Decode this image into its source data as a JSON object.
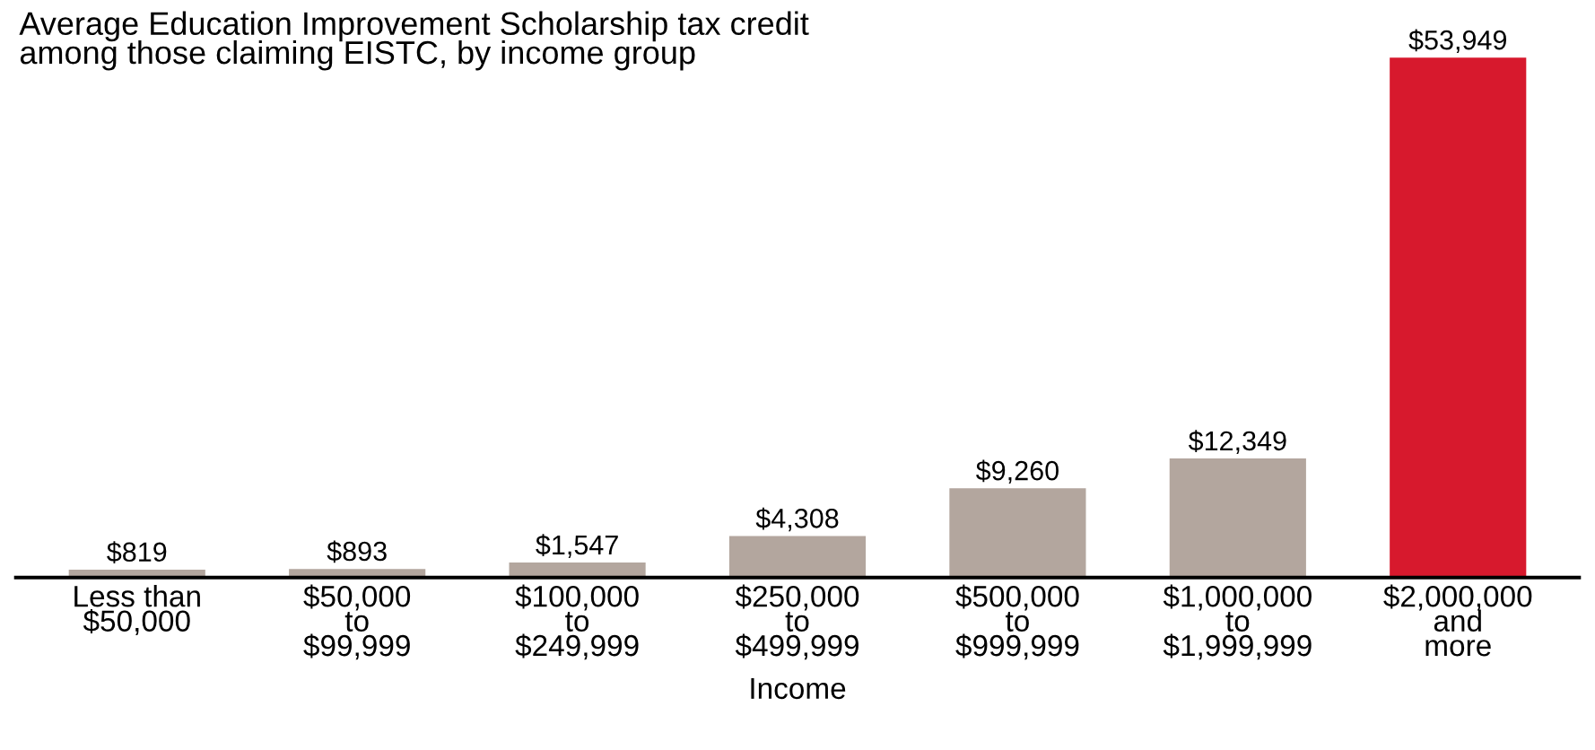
{
  "chart_data": {
    "type": "bar",
    "title": "Average Education Improvement Scholarship tax credit\namong those claiming EISTC, by income group",
    "xlabel": "Income",
    "categories": [
      "Less than\n$50,000",
      "$50,000\nto\n$99,999",
      "$100,000\nto\n$249,999",
      "$250,000\nto\n$499,999",
      "$500,000\nto\n$999,999",
      "$1,000,000\nto\n$1,999,999",
      "$2,000,000\nand\nmore"
    ],
    "values": [
      819,
      893,
      1547,
      4308,
      9260,
      12349,
      53949
    ],
    "colors": [
      "#b3a69e",
      "#b3a69e",
      "#b3a69e",
      "#b3a69e",
      "#b3a69e",
      "#b3a69e",
      "#d7192d"
    ],
    "value_labels": [
      "$819",
      "$893",
      "$1,547",
      "$4,308",
      "$9,260",
      "$12,349",
      "$53,949"
    ],
    "grid": false,
    "legend": false
  }
}
